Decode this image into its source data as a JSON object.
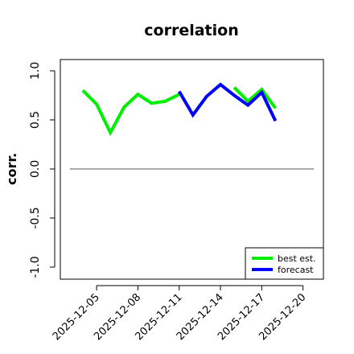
{
  "chart_data": {
    "type": "line",
    "title": "correlation",
    "ylabel": "corr.",
    "xlabel": "",
    "ylim": [
      -1.1,
      1.1
    ],
    "yticks": [
      "-1.0",
      "-0.5",
      "0.0",
      "0.5",
      "1.0"
    ],
    "reference_line": 0.0,
    "x": [
      "2025-12-04",
      "2025-12-05",
      "2025-12-06",
      "2025-12-07",
      "2025-12-08",
      "2025-12-09",
      "2025-12-10",
      "2025-12-11",
      "2025-12-12",
      "2025-12-13",
      "2025-12-14",
      "2025-12-15",
      "2025-12-16",
      "2025-12-17",
      "2025-12-18"
    ],
    "xticks": [
      "2025-12-05",
      "2025-12-08",
      "2025-12-11",
      "2025-12-14",
      "2025-12-17",
      "2025-12-20"
    ],
    "highlight_tick": "2025-12-11",
    "series": [
      {
        "name": "best est.",
        "color": "#00ee00",
        "values": [
          0.8,
          0.66,
          0.37,
          0.63,
          0.76,
          0.67,
          0.69,
          0.76,
          null,
          null,
          null,
          0.83,
          0.69,
          0.81,
          0.62
        ]
      },
      {
        "name": "forecast",
        "color": "#0000ff",
        "values": [
          null,
          null,
          null,
          null,
          null,
          null,
          null,
          0.79,
          0.55,
          0.74,
          0.86,
          0.75,
          0.65,
          0.78,
          0.49
        ]
      }
    ],
    "legend": {
      "position": "bottom-right",
      "entries": [
        "best est.",
        "forecast"
      ]
    },
    "colors": {
      "highlight_tick": "#228b22",
      "zero_line": "#555555"
    }
  }
}
